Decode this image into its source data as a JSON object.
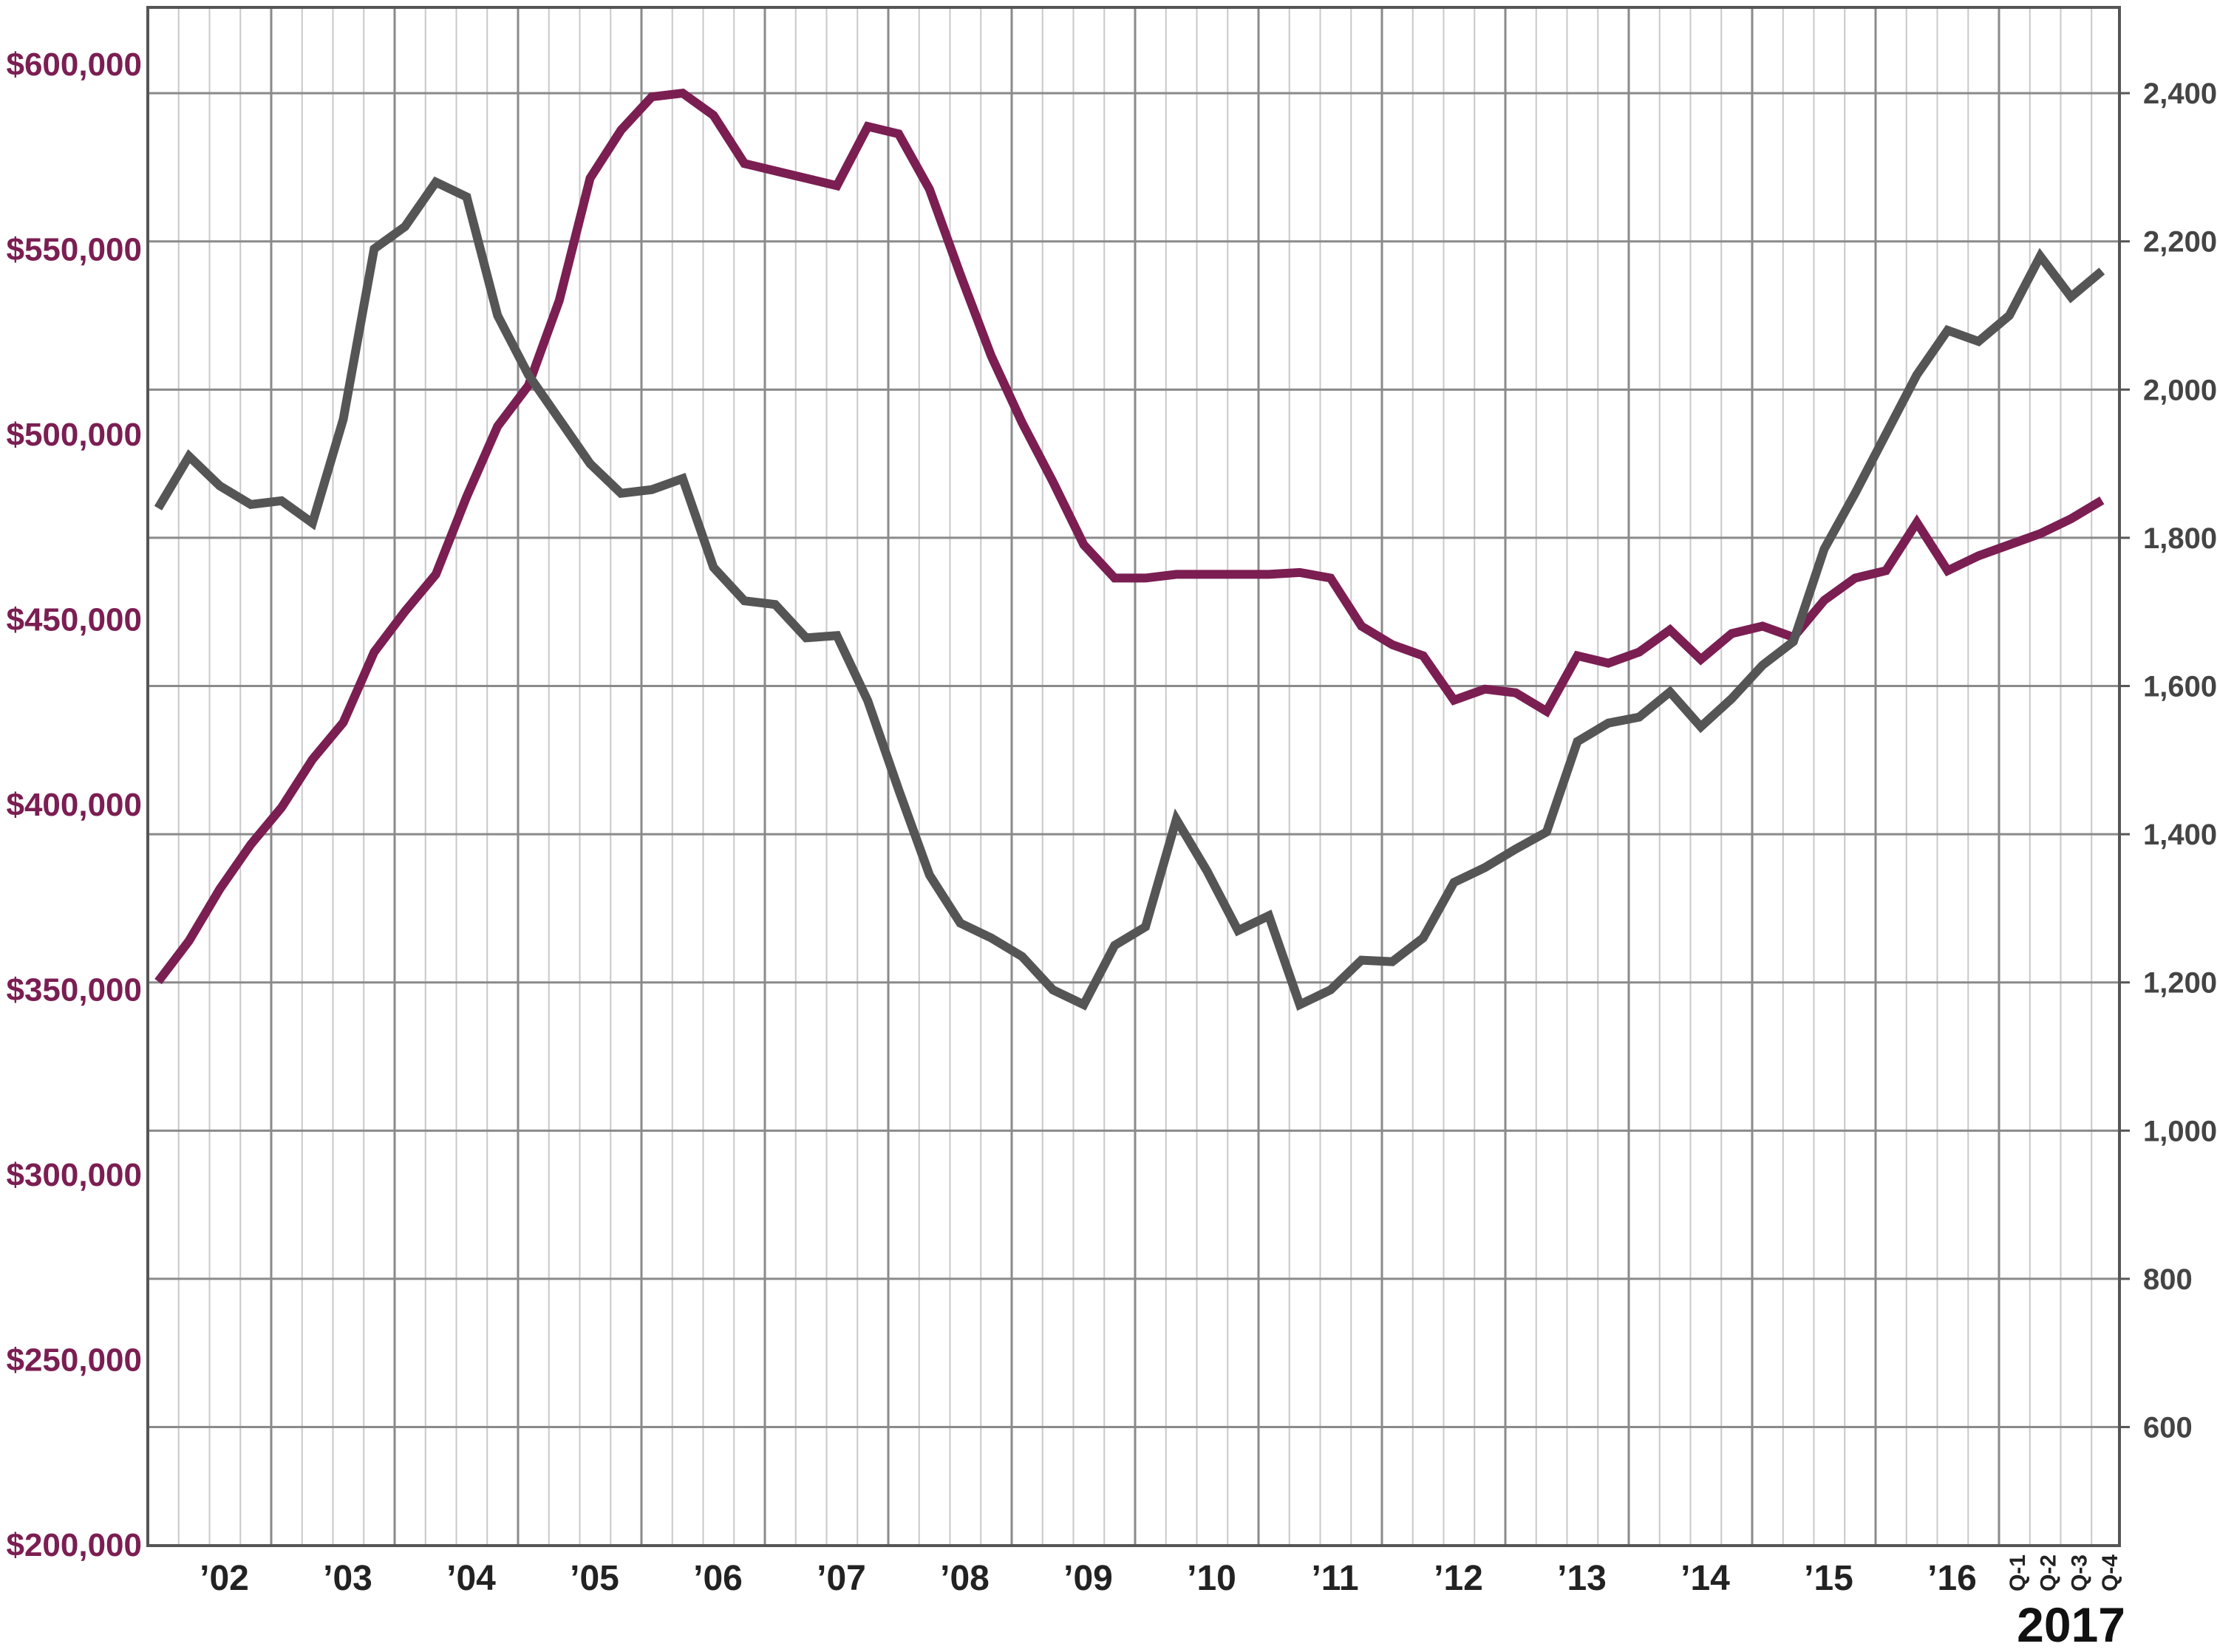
{
  "chart_data": {
    "type": "line",
    "title": "",
    "xlabel": "",
    "ylabel": "",
    "grid": true,
    "x_ticks": [
      "’02",
      "’03",
      "’04",
      "’05",
      "’06",
      "’07",
      "’08",
      "’09",
      "’10",
      "’11",
      "’12",
      "’13",
      "’14",
      "’15",
      "’16",
      "Q-1",
      "Q-2",
      "Q-3",
      "Q-4"
    ],
    "x_group_label": "2017",
    "y_left": {
      "ticks": [
        "$200,000",
        "$250,000",
        "$300,000",
        "$350,000",
        "$400,000",
        "$450,000",
        "$500,000",
        "$550,000",
        "$600,000"
      ],
      "ylim": [
        200000,
        600000
      ],
      "color": "#7b1e52"
    },
    "y_right": {
      "ticks": [
        "600",
        "800",
        "1,000",
        "1,200",
        "1,400",
        "1,600",
        "1,800",
        "2,000",
        "2,200",
        "2,400"
      ],
      "ylim": [
        440,
        2440
      ],
      "color": "#444444"
    },
    "series": [
      {
        "axis": "left",
        "color": "#7b1e52",
        "values": [
          352000,
          363000,
          377000,
          389000,
          399000,
          412000,
          422000,
          441000,
          452000,
          462000,
          483000,
          502000,
          513000,
          536000,
          569000,
          582000,
          591000,
          592000,
          586000,
          573000,
          571000,
          569000,
          567000,
          583000,
          581000,
          566000,
          543000,
          521000,
          503000,
          487000,
          470000,
          461000,
          461000,
          462000,
          462000,
          462000,
          462000,
          462500,
          461000,
          448000,
          443000,
          440000,
          428000,
          431000,
          430000,
          425000,
          440000,
          438000,
          441000,
          447000,
          439000,
          446000,
          448000,
          445000,
          455000,
          461000,
          463000,
          476000,
          463000,
          467000,
          470000,
          473000,
          477000,
          482000
        ]
      },
      {
        "axis": "right",
        "color": "#555555",
        "values": [
          1840,
          1910,
          1870,
          1845,
          1850,
          1820,
          1960,
          2190,
          2220,
          2280,
          2260,
          2100,
          2020,
          1960,
          1900,
          1860,
          1865,
          1880,
          1760,
          1715,
          1710,
          1665,
          1668,
          1580,
          1460,
          1345,
          1280,
          1260,
          1235,
          1190,
          1170,
          1250,
          1275,
          1420,
          1350,
          1270,
          1290,
          1170,
          1190,
          1230,
          1228,
          1260,
          1335,
          1355,
          1380,
          1403,
          1525,
          1550,
          1558,
          1592,
          1545,
          1583,
          1628,
          1660,
          1785,
          1860,
          1940,
          2020,
          2080,
          2065,
          2100,
          2180,
          2125,
          2160
        ]
      }
    ]
  }
}
